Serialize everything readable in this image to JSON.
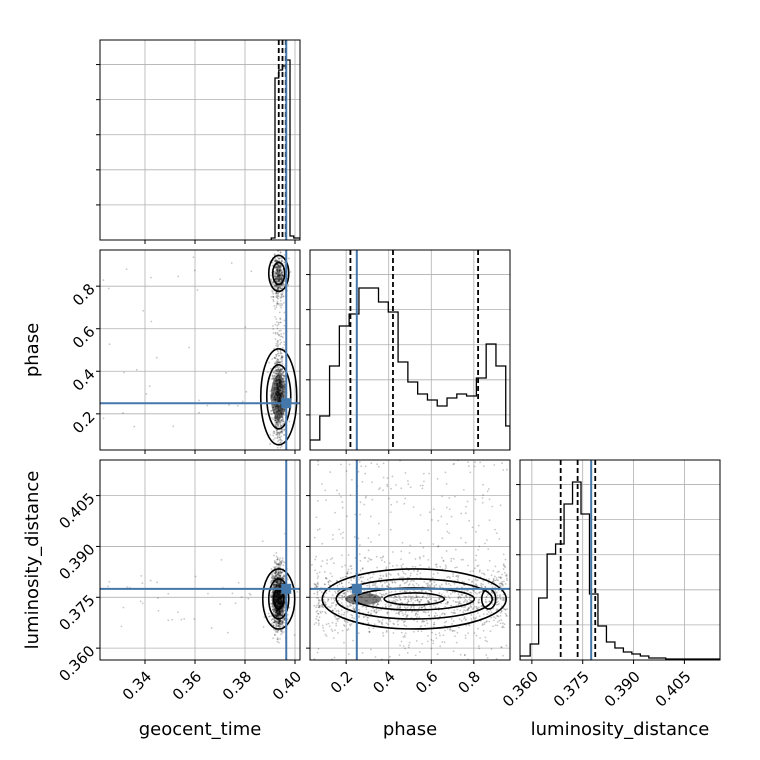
{
  "chart_data": {
    "type": "corner",
    "parameters": [
      "geocent_time",
      "phase",
      "luminosity_distance"
    ],
    "truths": {
      "geocent_time": 0.3965,
      "phase": 0.25,
      "luminosity_distance": 0.3775
    },
    "colors": {
      "truth": "#4477aa",
      "hist": "#000000",
      "grid": "#b0b0b0"
    },
    "ranges": {
      "geocent_time": [
        0.322,
        0.402
      ],
      "phase": [
        0.03,
        0.97
      ],
      "luminosity_distance": [
        0.3565,
        0.4155
      ]
    },
    "ticks": {
      "geocent_time": [
        0.34,
        0.36,
        0.38,
        0.4
      ],
      "phase": [
        0.2,
        0.4,
        0.6,
        0.8
      ],
      "luminosity_distance": [
        0.36,
        0.375,
        0.39,
        0.405
      ]
    },
    "tick_labels": {
      "geocent_time": [
        "0.34",
        "0.36",
        "0.38",
        "0.40"
      ],
      "phase": [
        "0.2",
        "0.4",
        "0.6",
        "0.8"
      ],
      "luminosity_distance": [
        "0.360",
        "0.375",
        "0.390",
        "0.405"
      ]
    },
    "xlabels": [
      "geocent_time",
      "phase",
      "luminosity_distance"
    ],
    "ylabels": [
      "",
      "phase",
      "luminosity_distance"
    ],
    "histograms": {
      "geocent_time": {
        "bin_edges": [
          0.3905,
          0.392,
          0.3935,
          0.395,
          0.3965,
          0.398,
          0.3995,
          0.402
        ],
        "counts": [
          0.01,
          0.81,
          0.85,
          0.87,
          0.9,
          0.02,
          0.01
        ]
      },
      "phase": {
        "bin_edges": [
          0.03,
          0.076,
          0.122,
          0.168,
          0.214,
          0.26,
          0.306,
          0.352,
          0.398,
          0.444,
          0.49,
          0.536,
          0.582,
          0.628,
          0.674,
          0.72,
          0.766,
          0.812,
          0.858,
          0.904,
          0.95,
          0.97
        ],
        "counts": [
          0.05,
          0.17,
          0.42,
          0.62,
          0.68,
          0.81,
          0.81,
          0.74,
          0.69,
          0.44,
          0.34,
          0.28,
          0.25,
          0.22,
          0.26,
          0.28,
          0.27,
          0.36,
          0.53,
          0.42,
          0.12
        ]
      },
      "luminosity_distance": {
        "bin_edges": [
          0.3565,
          0.3595,
          0.362,
          0.3645,
          0.367,
          0.3695,
          0.372,
          0.3745,
          0.377,
          0.3795,
          0.382,
          0.3845,
          0.387,
          0.3895,
          0.392,
          0.3945,
          0.397,
          0.3995,
          0.4155
        ],
        "counts": [
          0.02,
          0.08,
          0.31,
          0.53,
          0.58,
          0.78,
          0.89,
          0.73,
          0.33,
          0.17,
          0.09,
          0.06,
          0.04,
          0.03,
          0.02,
          0.01,
          0.01,
          0.005
        ]
      }
    },
    "quantiles": {
      "geocent_time": [
        0.3935,
        0.395,
        0.3963
      ],
      "phase": [
        0.22,
        0.42,
        0.82
      ],
      "luminosity_distance": [
        0.3685,
        0.3735,
        0.3787
      ]
    },
    "scatter_panels": [
      {
        "x": "geocent_time",
        "y": "phase",
        "x_center": 0.3935,
        "x_sd": 0.0013,
        "y_spread": "bimodal"
      },
      {
        "x": "geocent_time",
        "y": "luminosity_distance",
        "x_center": 0.3935,
        "x_sd": 0.0013,
        "y_center": 0.3745,
        "y_sd": 0.0045
      },
      {
        "x": "phase",
        "y": "luminosity_distance",
        "x_min": 0.05,
        "x_max": 0.96,
        "y_center": 0.3745,
        "y_sd": 0.005
      }
    ]
  }
}
